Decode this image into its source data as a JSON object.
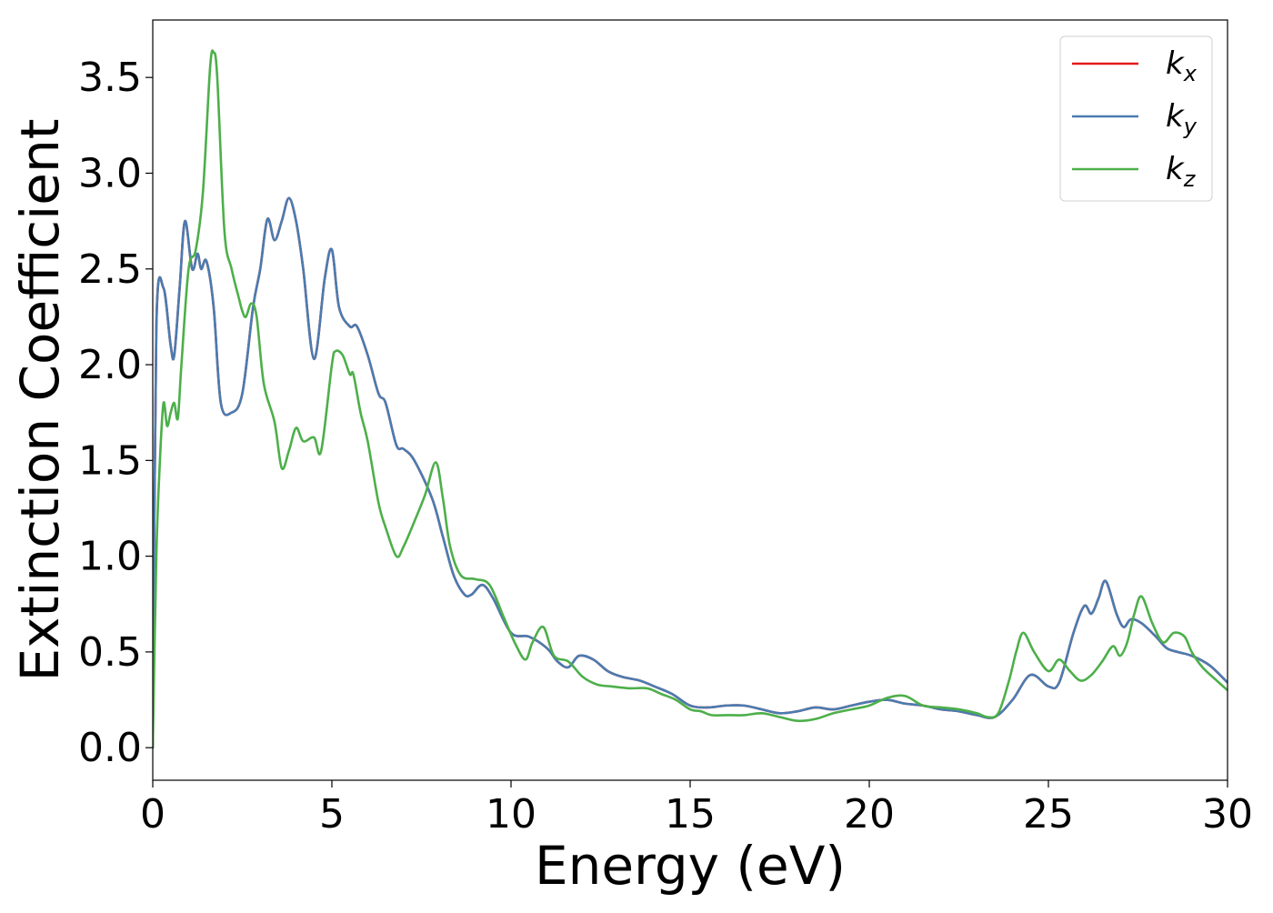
{
  "chart_data": {
    "type": "line",
    "xlabel": "Energy (eV)",
    "ylabel": "Extinction Coefficient",
    "xlim": [
      0,
      30
    ],
    "ylim": [
      -0.17,
      3.8
    ],
    "x_ticks": [
      0,
      5,
      10,
      15,
      20,
      25,
      30
    ],
    "x_tick_labels": [
      "0",
      "5",
      "10",
      "15",
      "20",
      "25",
      "30"
    ],
    "y_ticks": [
      0.0,
      0.5,
      1.0,
      1.5,
      2.0,
      2.5,
      3.0,
      3.5
    ],
    "y_tick_labels": [
      "0.0",
      "0.5",
      "1.0",
      "1.5",
      "2.0",
      "2.5",
      "3.0",
      "3.5"
    ],
    "grid": false,
    "legend_position": "top-right",
    "series": [
      {
        "name": "kx",
        "label_base": "k",
        "label_sub": "x",
        "color": "#e41a1c",
        "x": [
          0,
          0.1,
          0.3,
          0.5,
          0.6,
          0.75,
          0.9,
          1.1,
          1.25,
          1.35,
          1.5,
          1.7,
          1.9,
          2.2,
          2.5,
          2.8,
          3.0,
          3.2,
          3.4,
          3.6,
          3.8,
          4.0,
          4.2,
          4.5,
          4.8,
          5.0,
          5.2,
          5.5,
          5.7,
          6.0,
          6.3,
          6.5,
          6.8,
          7.0,
          7.3,
          7.8,
          8.1,
          8.4,
          8.7,
          8.9,
          9.2,
          9.5,
          10.0,
          10.5,
          11.0,
          11.3,
          11.6,
          11.9,
          12.3,
          12.7,
          13.1,
          13.6,
          14.0,
          14.5,
          15.0,
          15.5,
          16.0,
          16.5,
          17.0,
          17.5,
          18.0,
          18.5,
          19.0,
          19.5,
          20.0,
          20.5,
          21.0,
          21.5,
          22.0,
          22.5,
          23.0,
          23.5,
          24.0,
          24.5,
          25.0,
          25.3,
          25.7,
          26.0,
          26.2,
          26.4,
          26.6,
          26.9,
          27.1,
          27.3,
          27.6,
          28.0,
          28.3,
          28.6,
          29.0,
          29.5,
          30.0
        ],
        "y": [
          0.0,
          2.2,
          2.4,
          2.1,
          2.05,
          2.4,
          2.75,
          2.5,
          2.58,
          2.5,
          2.54,
          2.3,
          1.8,
          1.75,
          1.85,
          2.3,
          2.5,
          2.76,
          2.65,
          2.75,
          2.87,
          2.75,
          2.5,
          2.03,
          2.45,
          2.6,
          2.3,
          2.2,
          2.2,
          2.05,
          1.85,
          1.8,
          1.58,
          1.56,
          1.5,
          1.3,
          1.1,
          0.9,
          0.8,
          0.8,
          0.85,
          0.78,
          0.6,
          0.58,
          0.52,
          0.45,
          0.42,
          0.48,
          0.46,
          0.4,
          0.37,
          0.35,
          0.32,
          0.28,
          0.22,
          0.21,
          0.22,
          0.22,
          0.2,
          0.18,
          0.19,
          0.21,
          0.2,
          0.22,
          0.24,
          0.25,
          0.23,
          0.22,
          0.2,
          0.19,
          0.17,
          0.16,
          0.25,
          0.38,
          0.32,
          0.34,
          0.6,
          0.74,
          0.7,
          0.78,
          0.87,
          0.7,
          0.63,
          0.67,
          0.65,
          0.58,
          0.52,
          0.5,
          0.48,
          0.43,
          0.34
        ]
      },
      {
        "name": "ky",
        "label_base": "k",
        "label_sub": "y",
        "color": "#4a7cb0",
        "x": [
          0,
          0.1,
          0.3,
          0.5,
          0.6,
          0.75,
          0.9,
          1.1,
          1.25,
          1.35,
          1.5,
          1.7,
          1.9,
          2.2,
          2.5,
          2.8,
          3.0,
          3.2,
          3.4,
          3.6,
          3.8,
          4.0,
          4.2,
          4.5,
          4.8,
          5.0,
          5.2,
          5.5,
          5.7,
          6.0,
          6.3,
          6.5,
          6.8,
          7.0,
          7.3,
          7.8,
          8.1,
          8.4,
          8.7,
          8.9,
          9.2,
          9.5,
          10.0,
          10.5,
          11.0,
          11.3,
          11.6,
          11.9,
          12.3,
          12.7,
          13.1,
          13.6,
          14.0,
          14.5,
          15.0,
          15.5,
          16.0,
          16.5,
          17.0,
          17.5,
          18.0,
          18.5,
          19.0,
          19.5,
          20.0,
          20.5,
          21.0,
          21.5,
          22.0,
          22.5,
          23.0,
          23.5,
          24.0,
          24.5,
          25.0,
          25.3,
          25.7,
          26.0,
          26.2,
          26.4,
          26.6,
          26.9,
          27.1,
          27.3,
          27.6,
          28.0,
          28.3,
          28.6,
          29.0,
          29.5,
          30.0
        ],
        "y": [
          0.0,
          2.2,
          2.4,
          2.1,
          2.05,
          2.4,
          2.75,
          2.5,
          2.58,
          2.5,
          2.54,
          2.3,
          1.8,
          1.75,
          1.85,
          2.3,
          2.5,
          2.76,
          2.65,
          2.75,
          2.87,
          2.75,
          2.5,
          2.03,
          2.45,
          2.6,
          2.3,
          2.2,
          2.2,
          2.05,
          1.85,
          1.8,
          1.58,
          1.56,
          1.5,
          1.3,
          1.1,
          0.9,
          0.8,
          0.8,
          0.85,
          0.78,
          0.6,
          0.58,
          0.52,
          0.45,
          0.42,
          0.48,
          0.46,
          0.4,
          0.37,
          0.35,
          0.32,
          0.28,
          0.22,
          0.21,
          0.22,
          0.22,
          0.2,
          0.18,
          0.19,
          0.21,
          0.2,
          0.22,
          0.24,
          0.25,
          0.23,
          0.22,
          0.2,
          0.19,
          0.17,
          0.16,
          0.25,
          0.38,
          0.32,
          0.34,
          0.6,
          0.74,
          0.7,
          0.78,
          0.87,
          0.7,
          0.63,
          0.67,
          0.65,
          0.58,
          0.52,
          0.5,
          0.48,
          0.43,
          0.34
        ]
      },
      {
        "name": "kz",
        "label_base": "k",
        "label_sub": "z",
        "color": "#4daf4a",
        "x": [
          0,
          0.1,
          0.2,
          0.3,
          0.4,
          0.5,
          0.6,
          0.7,
          0.8,
          1.0,
          1.2,
          1.4,
          1.6,
          1.7,
          1.8,
          2.0,
          2.2,
          2.4,
          2.5,
          2.6,
          2.75,
          2.9,
          3.1,
          3.4,
          3.6,
          3.8,
          4.0,
          4.2,
          4.5,
          4.7,
          5.0,
          5.1,
          5.3,
          5.5,
          5.6,
          5.8,
          6.0,
          6.3,
          6.5,
          6.8,
          7.0,
          7.3,
          7.6,
          7.9,
          8.1,
          8.3,
          8.6,
          9.0,
          9.4,
          9.8,
          10.1,
          10.4,
          10.6,
          10.9,
          11.2,
          11.6,
          12.0,
          12.4,
          12.8,
          13.3,
          13.8,
          14.2,
          14.6,
          15.0,
          15.3,
          15.6,
          16.0,
          16.5,
          17.0,
          17.5,
          18.0,
          18.5,
          19.0,
          19.5,
          20.0,
          20.5,
          21.0,
          21.5,
          22.0,
          22.5,
          23.0,
          23.3,
          23.6,
          23.9,
          24.1,
          24.3,
          24.6,
          25.0,
          25.3,
          25.6,
          25.9,
          26.2,
          26.5,
          26.8,
          27.0,
          27.2,
          27.4,
          27.6,
          27.9,
          28.2,
          28.5,
          28.8,
          29.0,
          29.3,
          29.7,
          30.0
        ],
        "y": [
          0.0,
          1.0,
          1.5,
          1.8,
          1.68,
          1.75,
          1.8,
          1.72,
          2.0,
          2.5,
          2.6,
          2.9,
          3.55,
          3.63,
          3.5,
          2.7,
          2.5,
          2.35,
          2.28,
          2.25,
          2.32,
          2.25,
          1.9,
          1.7,
          1.46,
          1.55,
          1.67,
          1.6,
          1.62,
          1.55,
          2.0,
          2.07,
          2.05,
          1.95,
          1.95,
          1.75,
          1.6,
          1.28,
          1.15,
          1.0,
          1.05,
          1.18,
          1.32,
          1.49,
          1.3,
          1.05,
          0.9,
          0.88,
          0.85,
          0.68,
          0.55,
          0.46,
          0.55,
          0.63,
          0.48,
          0.45,
          0.37,
          0.33,
          0.32,
          0.31,
          0.31,
          0.28,
          0.25,
          0.2,
          0.19,
          0.17,
          0.17,
          0.17,
          0.18,
          0.16,
          0.14,
          0.15,
          0.18,
          0.2,
          0.22,
          0.26,
          0.27,
          0.22,
          0.21,
          0.2,
          0.18,
          0.16,
          0.18,
          0.35,
          0.5,
          0.6,
          0.5,
          0.4,
          0.46,
          0.4,
          0.35,
          0.38,
          0.45,
          0.53,
          0.48,
          0.55,
          0.7,
          0.79,
          0.65,
          0.55,
          0.6,
          0.58,
          0.5,
          0.42,
          0.35,
          0.3
        ]
      }
    ]
  }
}
